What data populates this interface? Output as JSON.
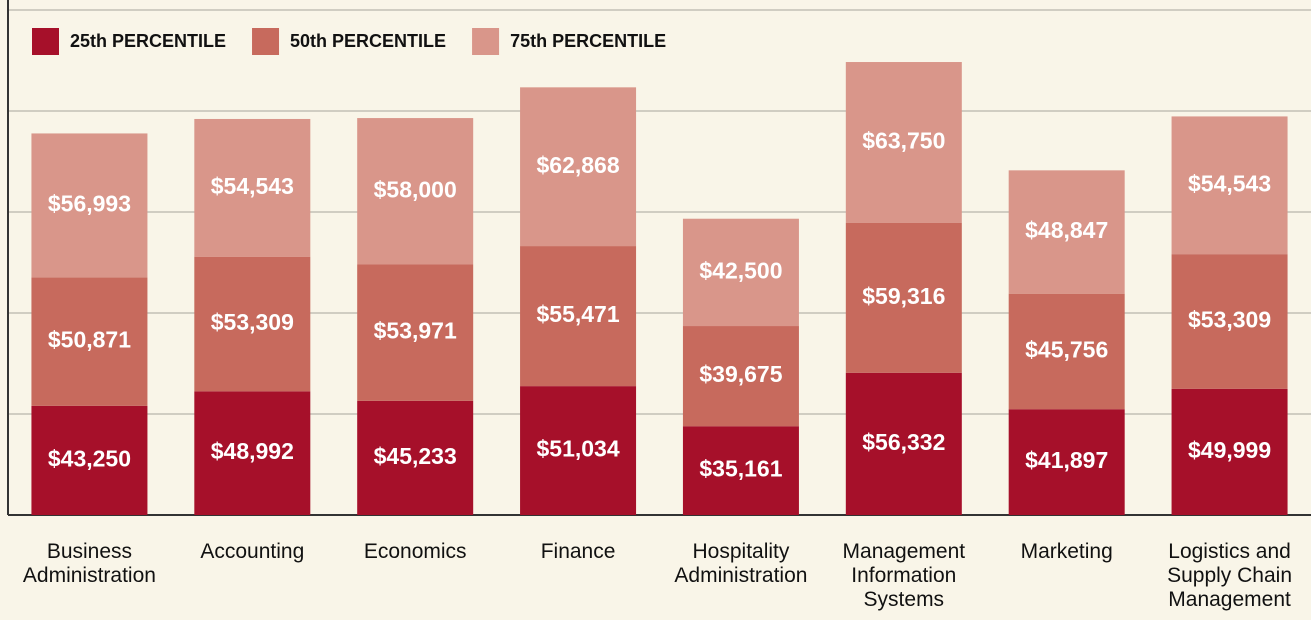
{
  "chart_data": {
    "type": "stacked_bar",
    "categories": [
      "Business\nAdministration",
      "Accounting",
      "Economics",
      "Finance",
      "Hospitality\nAdministration",
      "Management\nInformation\nSystems",
      "Marketing",
      "Logistics and\nSupply Chain\nManagement"
    ],
    "series": [
      {
        "name": "25th PERCENTILE",
        "color": "#a6102a",
        "values": [
          43250,
          48992,
          45233,
          51034,
          35161,
          56332,
          41897,
          49999
        ],
        "value_labels": [
          "$43,250",
          "$48,992",
          "$45,233",
          "$51,034",
          "$35,161",
          "$56,332",
          "$41,897",
          "$49,999"
        ]
      },
      {
        "name": "50th PERCENTILE",
        "color": "#c76a5d",
        "values": [
          50871,
          53309,
          53971,
          55471,
          39675,
          59316,
          45756,
          53309
        ],
        "value_labels": [
          "$50,871",
          "$53,309",
          "$53,971",
          "$55,471",
          "$39,675",
          "$59,316",
          "$45,756",
          "$53,309"
        ]
      },
      {
        "name": "75th PERCENTILE",
        "color": "#d9968a",
        "values": [
          56993,
          54543,
          58000,
          62868,
          42500,
          63750,
          48847,
          54543
        ],
        "value_labels": [
          "$56,993",
          "$54,543",
          "$58,000",
          "$62,868",
          "$42,500",
          "$63,750",
          "$48,847",
          "$54,543"
        ]
      }
    ],
    "ylim": [
      0,
      200000
    ],
    "yticks": [
      0,
      40000,
      80000,
      120000,
      160000,
      200000
    ],
    "grid": true,
    "legend": "top-left"
  }
}
